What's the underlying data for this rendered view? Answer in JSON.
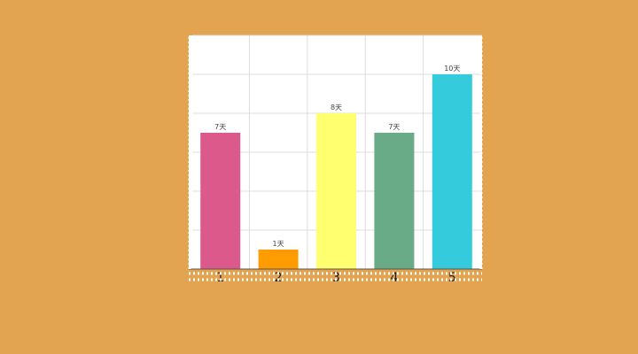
{
  "chart_data": {
    "type": "bar",
    "title": "",
    "xlabel": "",
    "ylabel": "",
    "categories": [
      "1",
      "2",
      "3",
      "4",
      "5"
    ],
    "values": [
      7,
      1,
      8,
      7,
      10
    ],
    "value_labels": [
      "7天",
      "1天",
      "8天",
      "7天",
      "10天"
    ],
    "bar_colors": [
      "#db5a8b",
      "#ff9c00",
      "#ffff6f",
      "#69aa87",
      "#34ccdd"
    ],
    "ylim": [
      0,
      12
    ],
    "grid": true,
    "legend": "none"
  },
  "colors": {
    "page_background": "#e3a452",
    "plot_background": "#ffffff",
    "grid": "#dddddd"
  }
}
